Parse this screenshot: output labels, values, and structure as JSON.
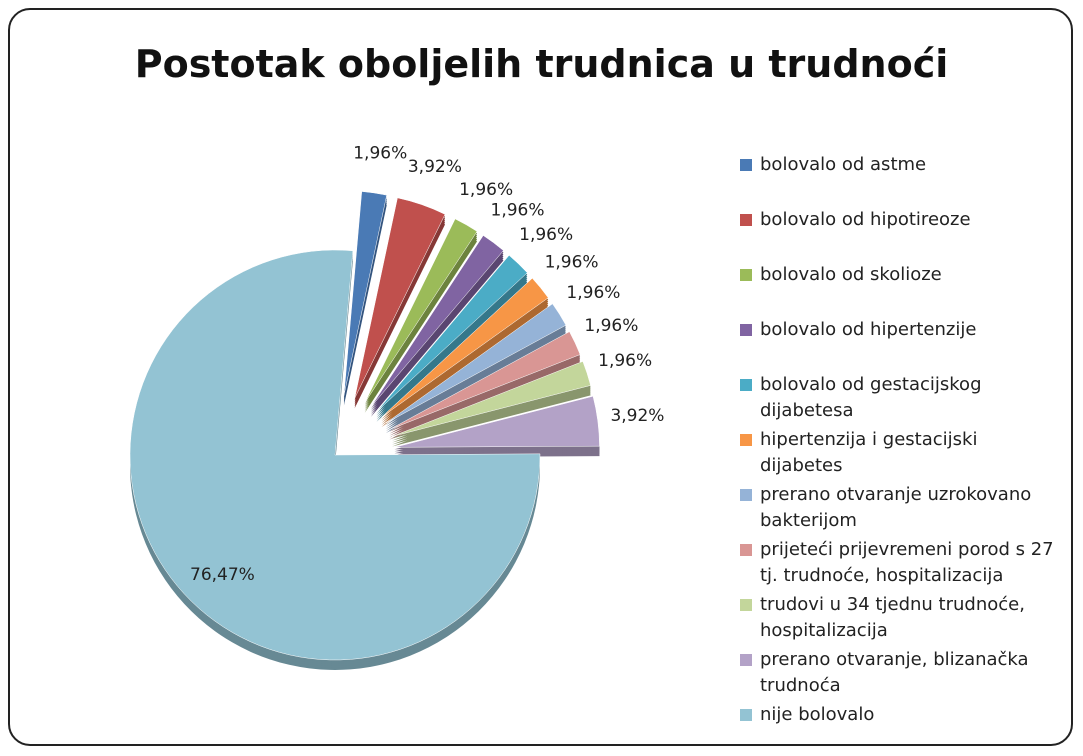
{
  "chart_data": {
    "type": "pie",
    "title": "Postotak oboljelih trudnica u trudnoći",
    "categories": [
      "bolovalo od astme",
      "bolovalo od hipotireoze",
      "bolovalo od skolioze",
      "bolovalo od hipertenzije",
      "bolovalo od gestacijskog dijabetesa",
      "hipertenzija i gestacijski dijabetes",
      "prerano otvaranje uzrokovano bakterijom",
      "prijeteći prijevremeni porod s 27 tj. trudnoće, hospitalizacija",
      "trudovi u 34 tjednu trudnoće, hospitalizacija",
      "prerano otvaranje, blizanačka trudnoća",
      "nije bolovalo"
    ],
    "values": [
      1.96,
      3.92,
      1.96,
      1.96,
      1.96,
      1.96,
      1.96,
      1.96,
      1.96,
      3.92,
      76.47
    ],
    "value_labels": [
      "1,96%",
      "3,92%",
      "1,96%",
      "1,96%",
      "1,96%",
      "1,96%",
      "1,96%",
      "1,96%",
      "1,96%",
      "3,92%",
      "76,47%"
    ],
    "colors": [
      "#4a7ab5",
      "#c0504d",
      "#9bbb59",
      "#8064a2",
      "#4bacc6",
      "#f79646",
      "#95b3d7",
      "#d99694",
      "#c3d69b",
      "#b3a2c7",
      "#93c3d3"
    ],
    "legend": "right"
  }
}
